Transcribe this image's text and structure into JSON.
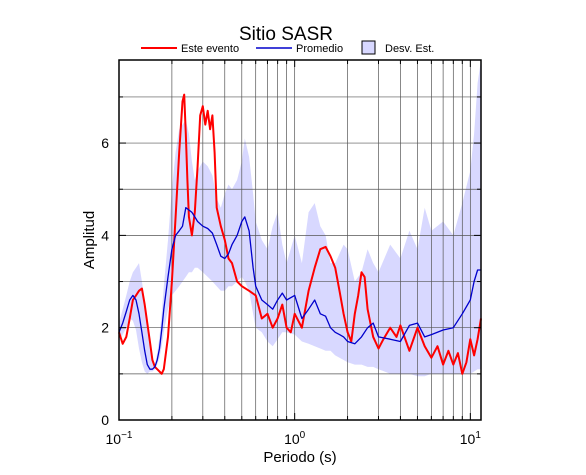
{
  "chart_data": {
    "type": "line",
    "title": "Sitio SASR",
    "xlabel": "Periodo (s)",
    "ylabel": "Amplitud",
    "xscale": "log",
    "xlim": [
      0.1,
      11.5
    ],
    "ylim": [
      0,
      7.8
    ],
    "grid": "vertical minor/major lines on log x axis; horizontal lines at y ticks",
    "legend_placement": "top, above plot",
    "x_ticks": [
      {
        "value": 0.1,
        "base": "10",
        "exp": "−1"
      },
      {
        "value": 1,
        "label": "10",
        "exp": "0"
      },
      {
        "value": 10,
        "base": "10",
        "exp": "1"
      }
    ],
    "y_ticks": [
      0,
      2,
      4,
      6
    ],
    "legend": {
      "event": "Este evento",
      "mean": "Promedio",
      "std": "Desv. Est."
    },
    "colors": {
      "event": "#ff0000",
      "mean": "#0000cc",
      "std_fill": "#d8d8ff"
    },
    "series": [
      {
        "name": "Este evento",
        "x": [
          0.1,
          0.105,
          0.11,
          0.115,
          0.12,
          0.125,
          0.13,
          0.135,
          0.14,
          0.145,
          0.15,
          0.155,
          0.16,
          0.165,
          0.17,
          0.175,
          0.18,
          0.19,
          0.2,
          0.21,
          0.22,
          0.23,
          0.235,
          0.24,
          0.245,
          0.25,
          0.26,
          0.27,
          0.28,
          0.29,
          0.3,
          0.31,
          0.32,
          0.33,
          0.34,
          0.35,
          0.36,
          0.38,
          0.4,
          0.42,
          0.44,
          0.47,
          0.5,
          0.55,
          0.6,
          0.65,
          0.7,
          0.75,
          0.8,
          0.85,
          0.9,
          0.95,
          1.0,
          1.1,
          1.2,
          1.3,
          1.4,
          1.5,
          1.6,
          1.7,
          1.8,
          1.9,
          2.0,
          2.1,
          2.2,
          2.3,
          2.4,
          2.5,
          2.6,
          2.8,
          3.0,
          3.2,
          3.5,
          3.8,
          4.0,
          4.5,
          5.0,
          5.5,
          6.0,
          6.5,
          7.0,
          7.5,
          8.0,
          8.5,
          9.0,
          9.5,
          10.0,
          10.5,
          11.0,
          11.5
        ],
        "values": [
          1.9,
          1.65,
          1.8,
          2.2,
          2.6,
          2.7,
          2.8,
          2.85,
          2.5,
          2.1,
          1.7,
          1.3,
          1.15,
          1.1,
          1.05,
          1.0,
          1.1,
          1.8,
          3.0,
          4.4,
          5.8,
          6.9,
          7.05,
          6.2,
          5.2,
          4.4,
          4.0,
          4.5,
          5.5,
          6.6,
          6.8,
          6.4,
          6.7,
          6.3,
          6.6,
          5.8,
          4.6,
          4.2,
          3.9,
          3.5,
          3.4,
          3.0,
          2.9,
          2.8,
          2.7,
          2.2,
          2.3,
          2.0,
          2.2,
          2.5,
          2.0,
          1.9,
          2.3,
          2.0,
          2.8,
          3.3,
          3.7,
          3.75,
          3.55,
          3.3,
          2.8,
          2.3,
          1.9,
          1.7,
          2.3,
          2.7,
          3.2,
          3.1,
          2.4,
          1.8,
          1.55,
          1.75,
          2.0,
          1.8,
          2.05,
          1.5,
          2.0,
          1.6,
          1.35,
          1.6,
          1.2,
          1.5,
          1.2,
          1.45,
          1.0,
          1.25,
          1.75,
          1.4,
          1.75,
          2.2
        ]
      },
      {
        "name": "Promedio",
        "x": [
          0.1,
          0.105,
          0.11,
          0.115,
          0.12,
          0.125,
          0.13,
          0.135,
          0.14,
          0.145,
          0.15,
          0.155,
          0.16,
          0.165,
          0.17,
          0.175,
          0.18,
          0.19,
          0.2,
          0.21,
          0.22,
          0.23,
          0.24,
          0.25,
          0.26,
          0.27,
          0.28,
          0.3,
          0.32,
          0.34,
          0.36,
          0.38,
          0.4,
          0.42,
          0.44,
          0.47,
          0.5,
          0.52,
          0.55,
          0.58,
          0.6,
          0.65,
          0.7,
          0.75,
          0.8,
          0.85,
          0.9,
          1.0,
          1.1,
          1.2,
          1.3,
          1.4,
          1.5,
          1.6,
          1.7,
          1.8,
          1.9,
          2.0,
          2.2,
          2.4,
          2.6,
          2.8,
          3.0,
          3.5,
          4.0,
          4.5,
          5.0,
          5.5,
          6.0,
          7.0,
          8.0,
          9.0,
          10.0,
          10.5,
          11.0,
          11.5
        ],
        "values": [
          1.9,
          2.1,
          2.35,
          2.6,
          2.7,
          2.6,
          2.3,
          1.9,
          1.5,
          1.2,
          1.1,
          1.1,
          1.15,
          1.3,
          1.55,
          1.95,
          2.4,
          3.1,
          3.7,
          4.0,
          4.1,
          4.2,
          4.6,
          4.55,
          4.5,
          4.4,
          4.3,
          4.2,
          4.15,
          4.05,
          3.8,
          3.55,
          3.5,
          3.6,
          3.8,
          4.0,
          4.3,
          4.4,
          4.1,
          3.3,
          2.9,
          2.6,
          2.5,
          2.4,
          2.6,
          2.75,
          2.6,
          2.7,
          2.2,
          2.4,
          2.6,
          2.3,
          2.25,
          2.0,
          1.9,
          1.85,
          1.8,
          1.7,
          1.65,
          1.8,
          2.0,
          2.1,
          1.8,
          1.75,
          1.7,
          2.05,
          2.1,
          1.8,
          1.85,
          1.95,
          2.0,
          2.3,
          2.6,
          3.0,
          3.25,
          3.25
        ]
      }
    ],
    "std_band": {
      "name": "Desv. Est.",
      "x": [
        0.1,
        0.105,
        0.11,
        0.115,
        0.12,
        0.125,
        0.13,
        0.135,
        0.14,
        0.145,
        0.15,
        0.155,
        0.16,
        0.165,
        0.17,
        0.175,
        0.18,
        0.19,
        0.2,
        0.21,
        0.22,
        0.23,
        0.24,
        0.25,
        0.26,
        0.27,
        0.28,
        0.3,
        0.32,
        0.34,
        0.36,
        0.38,
        0.4,
        0.42,
        0.44,
        0.47,
        0.5,
        0.52,
        0.55,
        0.58,
        0.6,
        0.65,
        0.7,
        0.75,
        0.8,
        0.85,
        0.9,
        1.0,
        1.1,
        1.2,
        1.3,
        1.4,
        1.5,
        1.6,
        1.7,
        1.8,
        1.9,
        2.0,
        2.2,
        2.4,
        2.6,
        2.8,
        3.0,
        3.5,
        4.0,
        4.5,
        5.0,
        5.5,
        6.0,
        7.0,
        8.0,
        9.0,
        10.0,
        10.5,
        11.0,
        11.5
      ],
      "upper": [
        2.1,
        2.4,
        2.7,
        3.0,
        3.2,
        3.3,
        3.4,
        3.0,
        2.6,
        2.2,
        1.6,
        1.25,
        1.2,
        1.45,
        1.8,
        2.3,
        2.9,
        3.9,
        5.0,
        5.8,
        6.3,
        6.4,
        6.5,
        6.2,
        5.6,
        5.2,
        5.4,
        5.6,
        5.5,
        5.3,
        4.8,
        4.6,
        4.9,
        5.1,
        5.0,
        5.2,
        5.6,
        6.1,
        5.7,
        4.9,
        4.3,
        3.9,
        3.7,
        4.2,
        4.5,
        3.8,
        3.4,
        4.0,
        3.4,
        4.5,
        4.7,
        4.2,
        4.0,
        3.4,
        3.4,
        3.6,
        3.8,
        3.7,
        3.0,
        3.2,
        3.7,
        3.4,
        3.2,
        3.8,
        3.5,
        4.1,
        3.7,
        4.6,
        4.1,
        4.3,
        4.0,
        4.7,
        5.4,
        6.2,
        7.3,
        7.8
      ],
      "lower": [
        1.7,
        1.85,
        2.0,
        2.2,
        2.15,
        1.95,
        1.55,
        1.25,
        1.05,
        1.0,
        1.05,
        1.05,
        1.1,
        1.2,
        1.35,
        1.6,
        1.9,
        2.4,
        2.7,
        2.8,
        2.9,
        3.0,
        3.1,
        3.2,
        3.2,
        3.3,
        3.3,
        3.2,
        3.1,
        3.0,
        2.9,
        2.8,
        2.8,
        2.9,
        2.9,
        3.0,
        3.1,
        3.0,
        2.8,
        2.3,
        2.0,
        1.9,
        1.7,
        1.6,
        1.75,
        1.9,
        1.9,
        1.85,
        1.7,
        1.65,
        1.6,
        1.55,
        1.5,
        1.5,
        1.4,
        1.35,
        1.3,
        1.25,
        1.2,
        1.2,
        1.15,
        1.15,
        1.1,
        1.0,
        1.0,
        1.0,
        0.95,
        0.95,
        1.0,
        1.0,
        1.0,
        1.0,
        1.0,
        1.05,
        1.1,
        1.1
      ]
    }
  }
}
